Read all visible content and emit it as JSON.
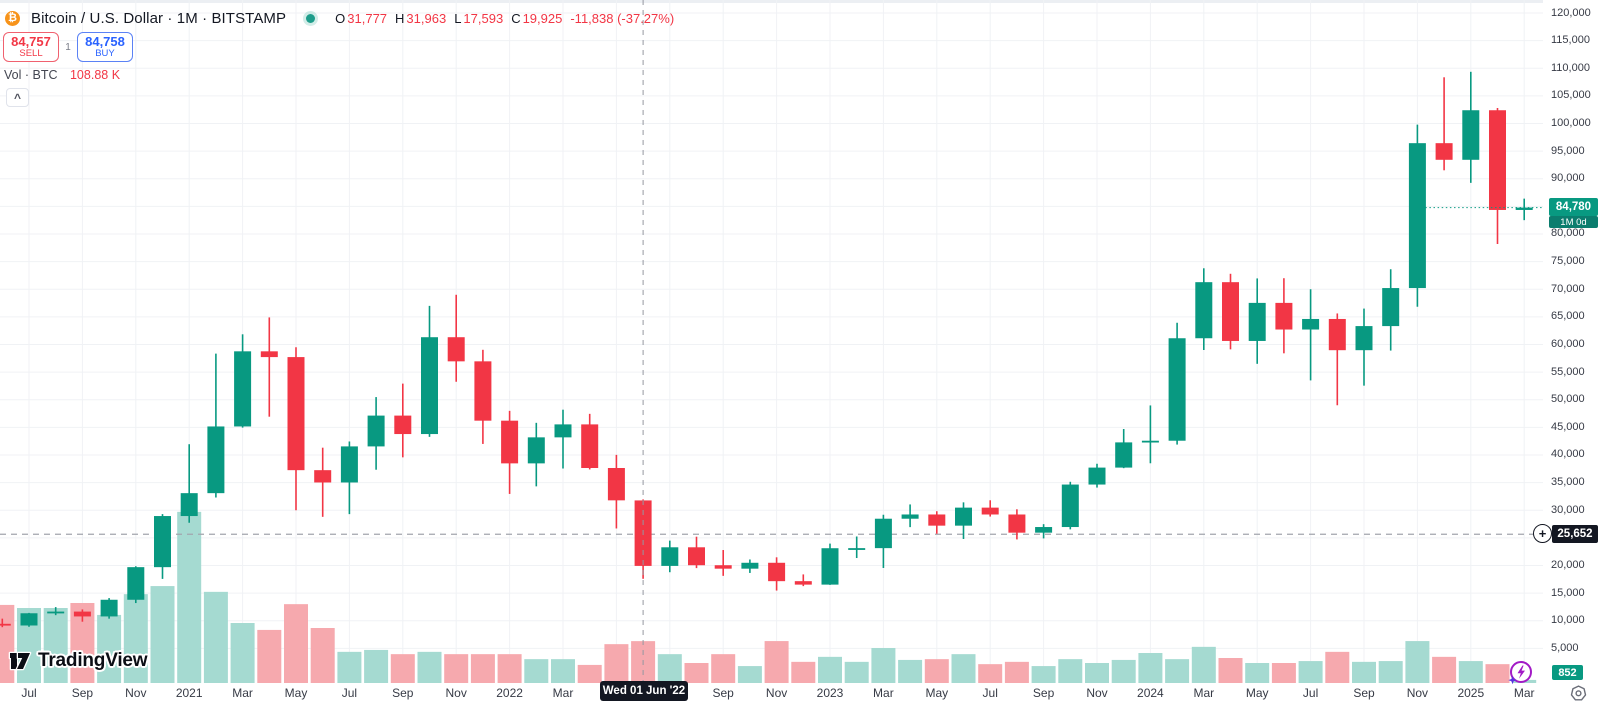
{
  "header": {
    "symbol": {
      "title": "Bitcoin / U.S. Dollar · 1M · BITSTAMP"
    },
    "ohlc": {
      "o_label": "O",
      "o_value": "31,777",
      "h_label": "H",
      "h_value": "31,963",
      "l_label": "L",
      "l_value": "17,593",
      "c_label": "C",
      "c_value": "19,925",
      "change": "-11,838 (-37.27%)"
    },
    "order_panel": {
      "sell_price": "84,757",
      "sell_label": "SELL",
      "spread": "1",
      "buy_price": "84,758",
      "buy_label": "BUY"
    },
    "volume_row": {
      "label": "Vol · BTC",
      "value": "108.88 K"
    },
    "collapse_glyph": "^"
  },
  "watermark": {
    "text": "TradingView"
  },
  "axes": {
    "price_ticks": [
      {
        "v": 120000,
        "label": "120,000"
      },
      {
        "v": 115000,
        "label": "115,000"
      },
      {
        "v": 110000,
        "label": "110,000"
      },
      {
        "v": 105000,
        "label": "105,000"
      },
      {
        "v": 100000,
        "label": "100,000"
      },
      {
        "v": 95000,
        "label": "95,000"
      },
      {
        "v": 90000,
        "label": "90,000"
      },
      {
        "v": 85000,
        "label": ""
      },
      {
        "v": 80000,
        "label": "80,000"
      },
      {
        "v": 75000,
        "label": "75,000"
      },
      {
        "v": 70000,
        "label": "70,000"
      },
      {
        "v": 65000,
        "label": "65,000"
      },
      {
        "v": 60000,
        "label": "60,000"
      },
      {
        "v": 55000,
        "label": "55,000"
      },
      {
        "v": 50000,
        "label": "50,000"
      },
      {
        "v": 45000,
        "label": "45,000"
      },
      {
        "v": 40000,
        "label": "40,000"
      },
      {
        "v": 35000,
        "label": "35,000"
      },
      {
        "v": 30000,
        "label": "30,000"
      },
      {
        "v": 25000,
        "label": ""
      },
      {
        "v": 20000,
        "label": "20,000"
      },
      {
        "v": 15000,
        "label": "15,000"
      },
      {
        "v": 10000,
        "label": "10,000"
      },
      {
        "v": 5000,
        "label": "5,000"
      }
    ],
    "time_ticks": [
      {
        "i": 1,
        "label": "Jul"
      },
      {
        "i": 3,
        "label": "Sep"
      },
      {
        "i": 5,
        "label": "Nov"
      },
      {
        "i": 7,
        "label": "2021"
      },
      {
        "i": 9,
        "label": "Mar"
      },
      {
        "i": 11,
        "label": "May"
      },
      {
        "i": 13,
        "label": "Jul"
      },
      {
        "i": 15,
        "label": "Sep"
      },
      {
        "i": 17,
        "label": "Nov"
      },
      {
        "i": 19,
        "label": "2022"
      },
      {
        "i": 21,
        "label": "Mar"
      },
      {
        "i": 23,
        "label": "May"
      },
      {
        "i": 25,
        "label": "Jul"
      },
      {
        "i": 27,
        "label": "Sep"
      },
      {
        "i": 29,
        "label": "Nov"
      },
      {
        "i": 31,
        "label": "2023"
      },
      {
        "i": 33,
        "label": "Mar"
      },
      {
        "i": 35,
        "label": "May"
      },
      {
        "i": 37,
        "label": "Jul"
      },
      {
        "i": 39,
        "label": "Sep"
      },
      {
        "i": 41,
        "label": "Nov"
      },
      {
        "i": 43,
        "label": "2024"
      },
      {
        "i": 45,
        "label": "Mar"
      },
      {
        "i": 47,
        "label": "May"
      },
      {
        "i": 49,
        "label": "Jul"
      },
      {
        "i": 51,
        "label": "Sep"
      },
      {
        "i": 53,
        "label": "Nov"
      },
      {
        "i": 55,
        "label": "2025"
      },
      {
        "i": 57,
        "label": "Mar"
      }
    ]
  },
  "overlays": {
    "last_price_badge": "84,780",
    "countdown": "1M 0d",
    "level_badge": "25,652",
    "plus_glyph": "+",
    "volume_badge": "852",
    "date_tooltip": "Wed 01 Jun '22"
  },
  "chart_data": {
    "type": "candlestick",
    "title": "Bitcoin / U.S. Dollar",
    "interval": "1M",
    "exchange": "BITSTAMP",
    "volume_unit": "K BTC",
    "hovered_month": "2022-06",
    "hovered_ohlc": [
      31777,
      31963,
      17593,
      19925
    ],
    "hovered_change": [
      -11838,
      -37.27
    ],
    "hovered_volume_kbtc": 108.88,
    "last_close": 84780,
    "horizontal_level": 25652,
    "visible_price_ticks": [
      5000,
      120000
    ],
    "colors": {
      "up": "#089981",
      "down": "#f23645",
      "vol_up": "#a5dad1",
      "vol_down": "#f6a9ae"
    },
    "columns": [
      "month",
      "open",
      "high",
      "low",
      "close",
      "volume_kbtc"
    ],
    "months": [
      [
        "2020-06",
        9446,
        10380,
        8833,
        9138,
        203
      ],
      [
        "2020-07",
        9138,
        11420,
        8905,
        11351,
        195
      ],
      [
        "2020-08",
        11351,
        12468,
        11010,
        11655,
        195
      ],
      [
        "2020-09",
        11655,
        12050,
        9825,
        10778,
        208
      ],
      [
        "2020-10",
        10778,
        14100,
        10374,
        13797,
        177
      ],
      [
        "2020-11",
        13797,
        19863,
        13200,
        19698,
        231
      ],
      [
        "2020-12",
        19698,
        29300,
        17572,
        28949,
        252
      ],
      [
        "2021-01",
        28949,
        41950,
        27734,
        33092,
        445
      ],
      [
        "2021-02",
        33092,
        58352,
        32296,
        45164,
        237
      ],
      [
        "2021-03",
        45164,
        61844,
        44950,
        58763,
        156
      ],
      [
        "2021-04",
        58763,
        64900,
        46930,
        57720,
        138
      ],
      [
        "2021-05",
        57720,
        59500,
        30000,
        37253,
        205
      ],
      [
        "2021-06",
        37253,
        41322,
        28805,
        35026,
        143
      ],
      [
        "2021-07",
        35026,
        42448,
        29296,
        41553,
        81
      ],
      [
        "2021-08",
        41553,
        50482,
        37332,
        47130,
        86
      ],
      [
        "2021-09",
        47130,
        52920,
        39573,
        43790,
        75
      ],
      [
        "2021-10",
        43790,
        66999,
        43283,
        61318,
        81
      ],
      [
        "2021-11",
        61318,
        69000,
        53256,
        56950,
        75
      ],
      [
        "2021-12",
        56950,
        59041,
        42000,
        46211,
        75
      ],
      [
        "2022-01",
        46211,
        47990,
        32950,
        38483,
        75
      ],
      [
        "2022-02",
        38483,
        45821,
        34322,
        43192,
        62
      ],
      [
        "2022-03",
        43192,
        48200,
        37550,
        45538,
        62
      ],
      [
        "2022-04",
        45538,
        47448,
        37386,
        37644,
        47
      ],
      [
        "2022-05",
        37644,
        40023,
        26700,
        31792,
        101
      ],
      [
        "2022-06",
        31777,
        31963,
        17593,
        19925,
        108.88
      ],
      [
        "2022-07",
        19925,
        24500,
        18781,
        23293,
        75
      ],
      [
        "2022-08",
        23293,
        25211,
        19526,
        20048,
        52
      ],
      [
        "2022-09",
        20048,
        22799,
        18125,
        19424,
        75
      ],
      [
        "2022-10",
        19424,
        21085,
        18650,
        20490,
        44
      ],
      [
        "2022-11",
        20490,
        21480,
        15460,
        17163,
        109
      ],
      [
        "2022-12",
        17163,
        18387,
        16263,
        16537,
        55
      ],
      [
        "2023-01",
        16537,
        23960,
        16490,
        23125,
        68
      ],
      [
        "2023-02",
        23125,
        25250,
        21351,
        23141,
        55
      ],
      [
        "2023-03",
        23141,
        29184,
        19549,
        28465,
        91
      ],
      [
        "2023-04",
        28465,
        31050,
        26942,
        29233,
        60
      ],
      [
        "2023-05",
        29233,
        29820,
        25751,
        27210,
        62
      ],
      [
        "2023-06",
        27210,
        31430,
        24797,
        30472,
        75
      ],
      [
        "2023-07",
        30472,
        31804,
        28855,
        29230,
        49
      ],
      [
        "2023-08",
        29230,
        30170,
        24715,
        25940,
        55
      ],
      [
        "2023-09",
        25940,
        27480,
        24900,
        26960,
        44
      ],
      [
        "2023-10",
        26960,
        35150,
        26538,
        34650,
        62
      ],
      [
        "2023-11",
        34650,
        38414,
        34100,
        37718,
        52
      ],
      [
        "2023-12",
        37718,
        44700,
        37615,
        42280,
        60
      ],
      [
        "2024-01",
        42280,
        48969,
        38501,
        42582,
        78
      ],
      [
        "2024-02",
        42582,
        63933,
        41884,
        61130,
        62
      ],
      [
        "2024-03",
        61130,
        73794,
        59005,
        71280,
        94
      ],
      [
        "2024-04",
        71280,
        72797,
        59120,
        60640,
        65
      ],
      [
        "2024-05",
        60640,
        71958,
        56500,
        67530,
        52
      ],
      [
        "2024-06",
        67530,
        71997,
        58402,
        62710,
        52
      ],
      [
        "2024-07",
        62710,
        70000,
        53500,
        64620,
        57
      ],
      [
        "2024-08",
        64620,
        65619,
        49000,
        58970,
        81
      ],
      [
        "2024-09",
        58970,
        66500,
        52550,
        63330,
        55
      ],
      [
        "2024-10",
        63330,
        73620,
        58900,
        70215,
        57
      ],
      [
        "2024-11",
        70215,
        99800,
        66835,
        96440,
        109
      ],
      [
        "2024-12",
        96440,
        108364,
        91530,
        93430,
        68
      ],
      [
        "2025-01",
        93430,
        109358,
        89256,
        102400,
        57
      ],
      [
        "2025-02",
        102400,
        102800,
        78200,
        84350,
        49
      ],
      [
        "2025-03",
        84350,
        86400,
        82500,
        84780,
        8
      ]
    ]
  }
}
